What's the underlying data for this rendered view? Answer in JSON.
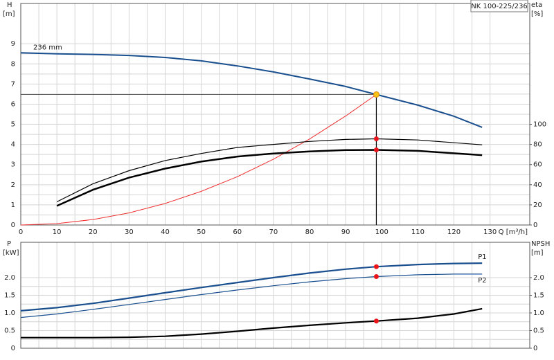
{
  "chart_data": [
    {
      "type": "line",
      "title": "NK 100-225/236",
      "ylabel": "H",
      "yunit": "[m]",
      "y2label": "eta",
      "y2unit": "[%]",
      "xlabel": "Q [m³/h]",
      "xlim": [
        0,
        141
      ],
      "xticks": [
        0,
        10,
        20,
        30,
        40,
        50,
        60,
        70,
        80,
        90,
        100,
        110,
        120,
        130
      ],
      "ylim": [
        0,
        11
      ],
      "yticks": [
        0,
        1,
        2,
        3,
        4,
        5,
        6,
        7,
        8,
        9
      ],
      "y2lim": [
        0,
        220
      ],
      "y2ticks": [
        0,
        20,
        40,
        60,
        80,
        100
      ],
      "grid": true,
      "xtick_labels": true,
      "operating_point": {
        "x": 98.5,
        "y": 6.48,
        "color": "#f7c31a"
      },
      "series": [
        {
          "name": "236 mm",
          "color": "#1a4f8f",
          "width": 2,
          "x": [
            0,
            10,
            20,
            30,
            40,
            50,
            60,
            70,
            80,
            90,
            98.5,
            110,
            120,
            127.8
          ],
          "values": [
            8.55,
            8.5,
            8.47,
            8.42,
            8.32,
            8.15,
            7.9,
            7.6,
            7.25,
            6.88,
            6.48,
            5.95,
            5.4,
            4.85
          ]
        },
        {
          "color": "#f03030",
          "width": 1,
          "x": [
            0,
            10,
            20,
            30,
            40,
            50,
            60,
            70,
            80,
            90,
            98.5
          ],
          "values": [
            0,
            0.07,
            0.27,
            0.6,
            1.07,
            1.67,
            2.4,
            3.27,
            4.27,
            5.41,
            6.48
          ]
        },
        {
          "axis": "y2",
          "color": "#000000",
          "width": 1.2,
          "marker_color": "#e8161b",
          "x": [
            10,
            20,
            30,
            40,
            50,
            60,
            70,
            80,
            90,
            98.5,
            110,
            127.8
          ],
          "values": [
            23,
            41,
            54,
            64,
            71,
            77,
            80,
            83,
            85,
            85.6,
            84.4,
            79.6
          ]
        },
        {
          "axis": "y2",
          "color": "#000000",
          "width": 2.5,
          "marker_color": "#e8161b",
          "x": [
            10,
            20,
            30,
            40,
            50,
            60,
            70,
            80,
            90,
            98.5,
            110,
            127.8
          ],
          "values": [
            19,
            35,
            47,
            56,
            63,
            68,
            71,
            73,
            74.4,
            74.6,
            73.6,
            69.4
          ]
        }
      ]
    },
    {
      "type": "line",
      "ylabel": "P",
      "yunit": "[kW]",
      "y2label": "NPSH",
      "y2unit": "[m]",
      "xlim": [
        0,
        141
      ],
      "xticks": [
        0,
        10,
        20,
        30,
        40,
        50,
        60,
        70,
        80,
        90,
        100,
        110,
        120,
        130
      ],
      "ylim": [
        0,
        3
      ],
      "yticks": [
        0,
        0.5,
        {
          "value": 1,
          "label": "1.0"
        },
        1.5,
        {
          "value": 2,
          "label": "2.0"
        }
      ],
      "y2lim": [
        0,
        3
      ],
      "y2ticks": [
        0,
        0.5,
        {
          "value": 1,
          "label": "1.0"
        },
        1.5,
        {
          "value": 2,
          "label": "2.0"
        }
      ],
      "grid": true,
      "xtick_labels": false,
      "operating_point": {
        "x": 98.5
      },
      "series": [
        {
          "name": "P1",
          "color": "#1a4f8f",
          "width": 2.2,
          "marker_color": "#e8161b",
          "x": [
            0,
            10,
            20,
            30,
            40,
            50,
            60,
            70,
            80,
            90,
            98.5,
            110,
            120,
            127.8
          ],
          "values": [
            1.06,
            1.15,
            1.27,
            1.42,
            1.57,
            1.72,
            1.86,
            2.0,
            2.13,
            2.24,
            2.31,
            2.37,
            2.4,
            2.41
          ]
        },
        {
          "name": "P2",
          "color": "#1a4f8f",
          "width": 1.2,
          "marker_color": "#e8161b",
          "x": [
            0,
            10,
            20,
            30,
            40,
            50,
            60,
            70,
            80,
            90,
            98.5,
            110,
            120,
            127.8
          ],
          "values": [
            0.87,
            0.97,
            1.1,
            1.24,
            1.38,
            1.52,
            1.65,
            1.77,
            1.88,
            1.97,
            2.03,
            2.08,
            2.1,
            2.1
          ]
        },
        {
          "axis": "y2",
          "color": "#000000",
          "width": 2.2,
          "marker_color": "#e8161b",
          "x": [
            0,
            10,
            20,
            30,
            40,
            50,
            60,
            70,
            80,
            90,
            98.5,
            110,
            120,
            127.8
          ],
          "values": [
            0.3,
            0.3,
            0.3,
            0.31,
            0.34,
            0.4,
            0.48,
            0.57,
            0.65,
            0.72,
            0.77,
            0.85,
            0.97,
            1.12
          ]
        }
      ]
    }
  ]
}
